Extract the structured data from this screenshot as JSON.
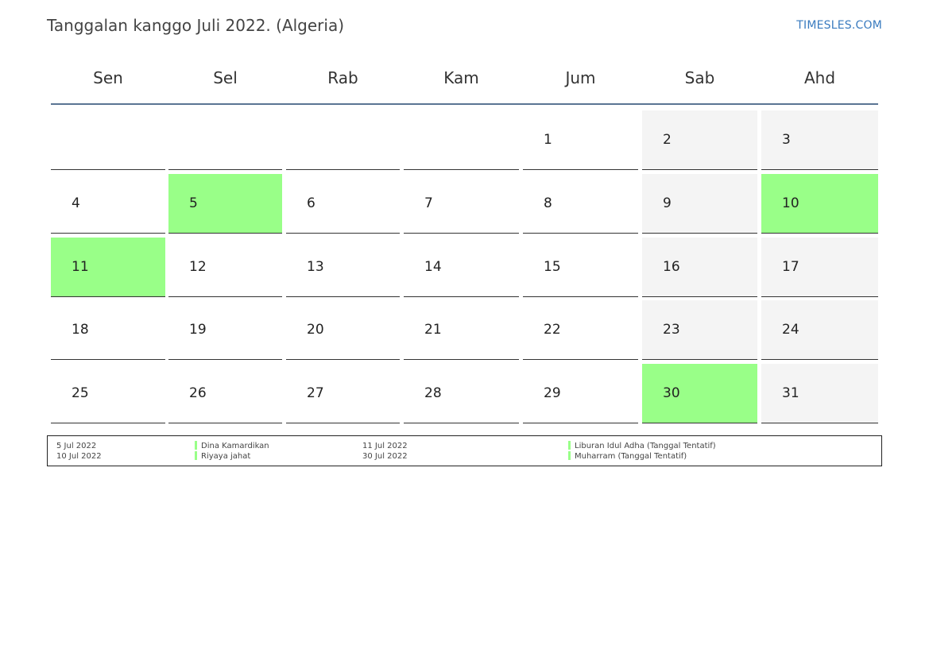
{
  "header": {
    "title": "Tanggalan kanggo Juli 2022. (Algeria)",
    "brand": "TIMESLES.COM"
  },
  "weekdays": [
    "Sen",
    "Sel",
    "Rab",
    "Kam",
    "Jum",
    "Sab",
    "Ahd"
  ],
  "weeks": [
    [
      null,
      null,
      null,
      null,
      "1",
      "2",
      "3"
    ],
    [
      "4",
      "5",
      "6",
      "7",
      "8",
      "9",
      "10"
    ],
    [
      "11",
      "12",
      "13",
      "14",
      "15",
      "16",
      "17"
    ],
    [
      "18",
      "19",
      "20",
      "21",
      "22",
      "23",
      "24"
    ],
    [
      "25",
      "26",
      "27",
      "28",
      "29",
      "30",
      "31"
    ]
  ],
  "holiday_days": [
    "5",
    "10",
    "11",
    "30"
  ],
  "colors": {
    "holiday": "#99ff88",
    "weekend": "#f4f4f4",
    "header_rule": "#5a7593",
    "brand": "#3a7bbf"
  },
  "holidays": [
    {
      "date": "5 Jul 2022",
      "name": "Dina Kamardikan"
    },
    {
      "date": "10 Jul 2022",
      "name": "Riyaya jahat"
    },
    {
      "date": "11 Jul 2022",
      "name": "Liburan Idul Adha (Tanggal Tentatif)"
    },
    {
      "date": "30 Jul 2022",
      "name": "Muharram (Tanggal Tentatif)"
    }
  ]
}
